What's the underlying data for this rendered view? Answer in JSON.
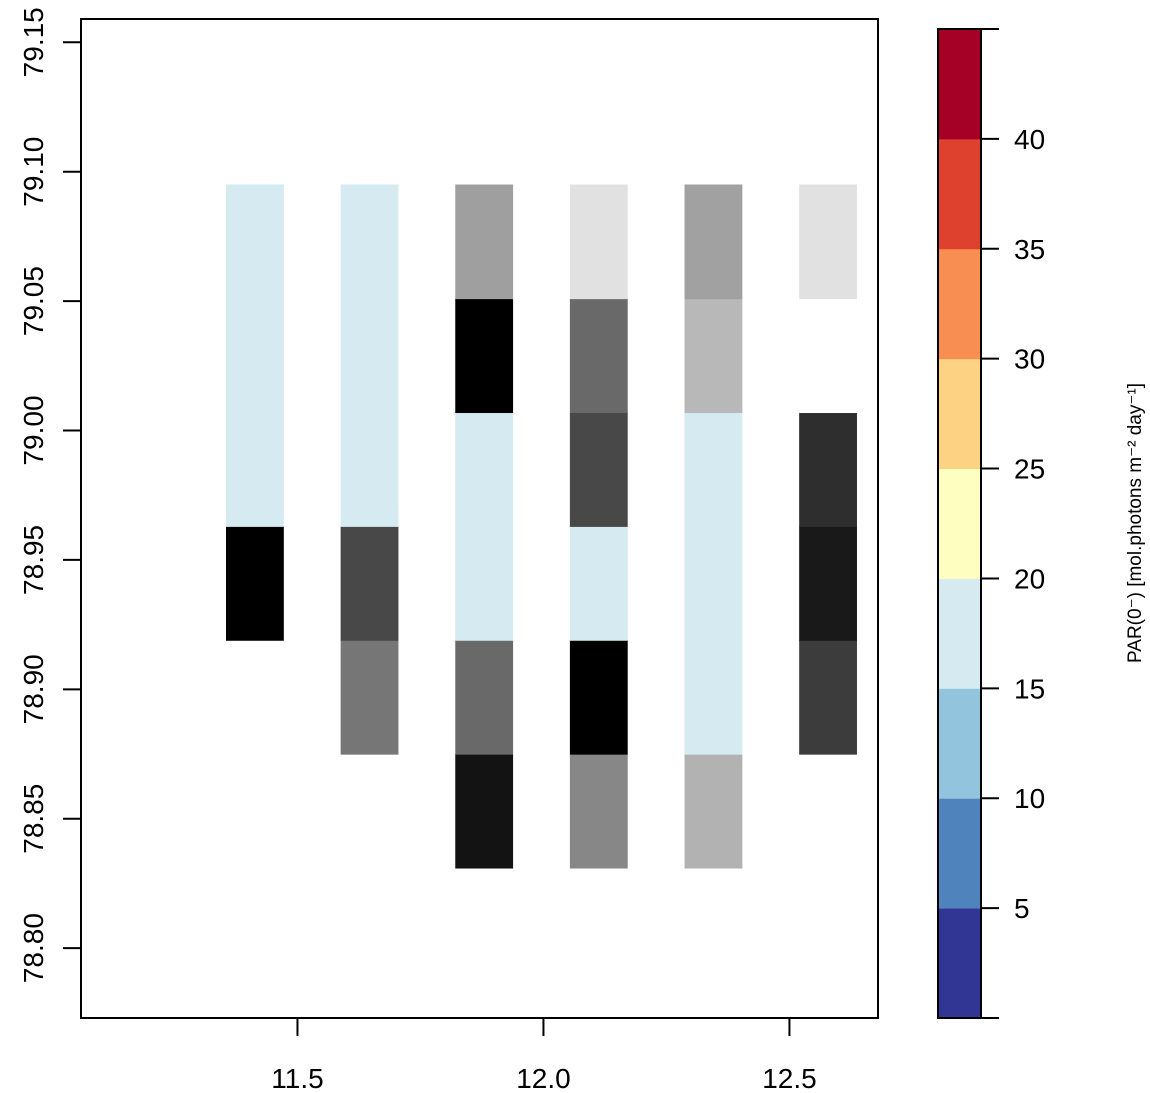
{
  "chart_data": {
    "type": "heatmap",
    "x_ticks": [
      "11.5",
      "12.0",
      "12.5"
    ],
    "x_tick_values": [
      11.5,
      12.0,
      12.5
    ],
    "y_ticks": [
      "78.80",
      "78.85",
      "78.90",
      "78.95",
      "79.00",
      "79.05",
      "79.10",
      "79.15"
    ],
    "y_tick_values": [
      78.8,
      78.85,
      78.9,
      78.95,
      79.0,
      79.05,
      79.1,
      79.15
    ],
    "xlim": [
      11.06,
      12.68
    ],
    "ylim": [
      78.773,
      79.159
    ],
    "x_cells": [
      11.413,
      11.646,
      11.879,
      12.112,
      12.345,
      12.578
    ],
    "y_cells": [
      78.853,
      78.897,
      78.941,
      78.985,
      79.029,
      79.073
    ],
    "cell_half_width": [
      0.1165,
      0.02205
    ],
    "grid_colors": [
      [
        null,
        null,
        "#131313",
        "#878787",
        "#b2b2b2",
        null
      ],
      [
        null,
        "#767676",
        "#696969",
        "#000000",
        "#d5eaf1",
        "#3c3c3c"
      ],
      [
        "#000000",
        "#484848",
        "#d5eaf1",
        "#d5eaf1",
        "#d5eaf1",
        "#191919"
      ],
      [
        "#d5eaf1",
        "#d5eaf1",
        "#d5eaf1",
        "#484848",
        "#d5eaf1",
        "#2e2e2e"
      ],
      [
        "#d5eaf1",
        "#d5eaf1",
        "#000000",
        "#696969",
        "#b8b8b8",
        "#ffffff"
      ],
      [
        "#d5eaf1",
        "#d5eaf1",
        "#9f9f9f",
        "#e1e1e1",
        "#a1a1a1",
        "#e1e1e1"
      ]
    ],
    "grid": false,
    "colorbar": {
      "label": "PAR(0⁻) [mol.photons m⁻² day⁻¹]",
      "range": [
        0,
        45
      ],
      "ticks": [
        "5",
        "10",
        "15",
        "20",
        "25",
        "30",
        "35",
        "40"
      ],
      "tick_values": [
        5,
        10,
        15,
        20,
        25,
        30,
        35,
        40
      ],
      "bins": [
        {
          "from": 0,
          "to": 5,
          "color": "#313695"
        },
        {
          "from": 5,
          "to": 10,
          "color": "#4f83bb"
        },
        {
          "from": 10,
          "to": 15,
          "color": "#92c4de"
        },
        {
          "from": 15,
          "to": 20,
          "color": "#d5eaf1"
        },
        {
          "from": 20,
          "to": 25,
          "color": "#fefec0"
        },
        {
          "from": 25,
          "to": 30,
          "color": "#fed283"
        },
        {
          "from": 30,
          "to": 35,
          "color": "#f98e52"
        },
        {
          "from": 35,
          "to": 40,
          "color": "#de422f"
        },
        {
          "from": 40,
          "to": 45,
          "color": "#a50026"
        }
      ]
    }
  }
}
